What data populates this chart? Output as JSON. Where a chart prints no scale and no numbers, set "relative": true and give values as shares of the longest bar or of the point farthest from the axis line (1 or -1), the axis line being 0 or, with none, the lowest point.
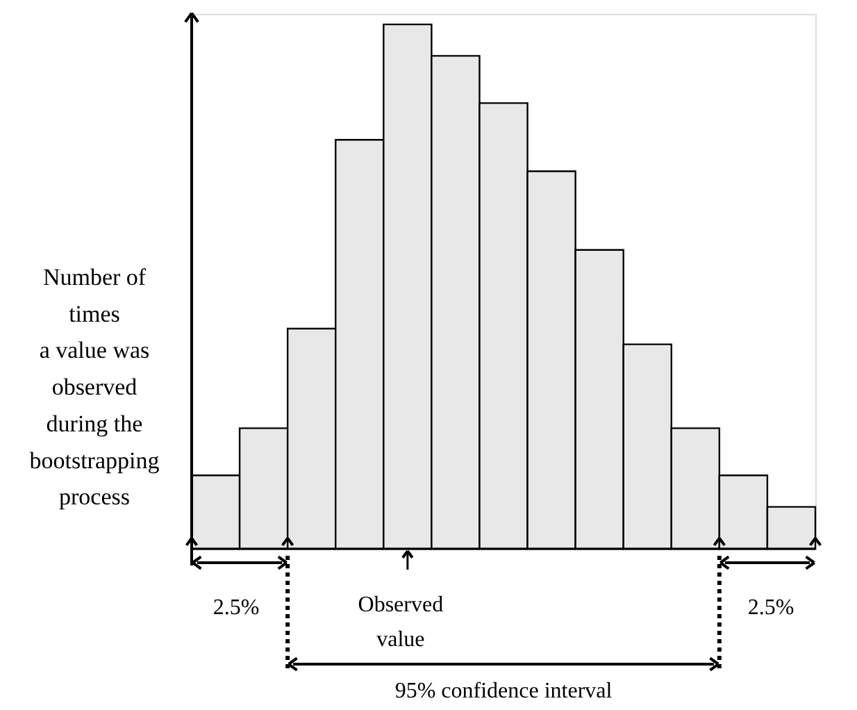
{
  "chart_data": {
    "type": "bar",
    "relative": true,
    "categories": [
      null,
      null,
      null,
      null,
      null,
      null,
      null,
      null,
      null,
      null,
      null,
      null,
      null
    ],
    "values": [
      0.14,
      0.23,
      0.42,
      0.78,
      1,
      0.94,
      0.85,
      0.72,
      0.57,
      0.39,
      0.23,
      0.14,
      0.08
    ],
    "color": "#e8e8e8",
    "ylabel": "Number of\ntimes\na value was\nobserved\nduring the\nbootstrapping\nprocess",
    "annotations": [
      "2.5%",
      "2.5%",
      "Observed\nvalue",
      "95% confidence interval"
    ]
  }
}
